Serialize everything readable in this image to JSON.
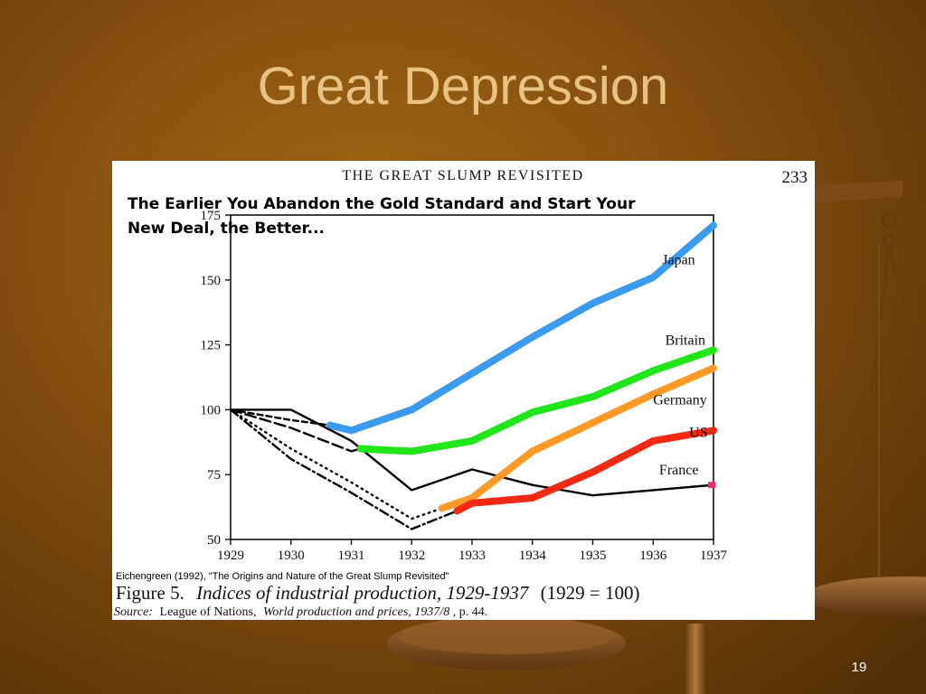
{
  "slide": {
    "title": "Great Depression",
    "number": "19"
  },
  "figure": {
    "header": "THE GREAT SLUMP REVISITED",
    "page_number": "233",
    "overlay_caption_line1": "The Earlier You Abandon the Gold Standard and Start Your",
    "overlay_caption_line2": "New Deal, the Better...",
    "citation": "Eichengreen (1992), \"The Origins and Nature of the Great Slump Revisited\"",
    "figure_label": "Figure 5.",
    "figure_title": "Indices of industrial production, 1929-1937",
    "figure_note": "(1929 = 100)",
    "source_label": "Source:",
    "source_prefix": "League of Nations,",
    "source_italic": "World production and prices, 1937/8",
    "source_suffix": ", p. 44."
  },
  "chart_data": {
    "type": "line",
    "x": [
      1929,
      1930,
      1931,
      1932,
      1933,
      1934,
      1935,
      1936,
      1937
    ],
    "xlim": [
      1929,
      1937
    ],
    "ylim": [
      50,
      175
    ],
    "yticks": [
      50,
      75,
      100,
      125,
      150,
      175
    ],
    "xticks": [
      "1929",
      "1930",
      "1931",
      "1932",
      "1933",
      "1934",
      "1935",
      "1936",
      "1937"
    ],
    "series": [
      {
        "name": "Japan",
        "color": "#3a9bf0",
        "style": "highlight",
        "points": [
          [
            1930.65,
            94
          ],
          [
            1931,
            92
          ],
          [
            1932,
            100
          ],
          [
            1933,
            114
          ],
          [
            1934,
            128
          ],
          [
            1935,
            141
          ],
          [
            1936,
            151
          ],
          [
            1937,
            171
          ]
        ]
      },
      {
        "name": "Britain",
        "color": "#22e61c",
        "style": "highlight",
        "points": [
          [
            1931.15,
            85
          ],
          [
            1931.5,
            84.5
          ],
          [
            1932,
            84
          ],
          [
            1933,
            88
          ],
          [
            1934,
            99
          ],
          [
            1935,
            105
          ],
          [
            1936,
            115
          ],
          [
            1937,
            123
          ]
        ]
      },
      {
        "name": "Germany",
        "color": "#ff9a26",
        "style": "highlight",
        "points": [
          [
            1932.5,
            62
          ],
          [
            1933,
            66
          ],
          [
            1934,
            84
          ],
          [
            1935,
            95
          ],
          [
            1936,
            106
          ],
          [
            1937,
            116
          ]
        ]
      },
      {
        "name": "US",
        "color": "#f22a14",
        "style": "highlight",
        "points": [
          [
            1932.75,
            61
          ],
          [
            1933,
            64
          ],
          [
            1934,
            66
          ],
          [
            1935,
            76
          ],
          [
            1936,
            88
          ],
          [
            1937,
            92
          ]
        ]
      },
      {
        "name": "France",
        "color": "#000000",
        "style": "solid",
        "points": [
          [
            1929,
            100
          ],
          [
            1930,
            100
          ],
          [
            1931,
            88
          ],
          [
            1932,
            69
          ],
          [
            1933,
            77
          ],
          [
            1934,
            71
          ],
          [
            1935,
            67
          ],
          [
            1936,
            69
          ],
          [
            1937,
            71
          ]
        ]
      },
      {
        "name": "",
        "color": "#000000",
        "style": "longdash",
        "points": [
          [
            1929,
            100
          ],
          [
            1930,
            93
          ],
          [
            1931,
            84
          ],
          [
            1931.15,
            85
          ]
        ]
      },
      {
        "name": "",
        "color": "#000000",
        "style": "dotted",
        "points": [
          [
            1929,
            100
          ],
          [
            1930,
            85
          ],
          [
            1931,
            72
          ],
          [
            1932,
            58
          ],
          [
            1932.5,
            62
          ]
        ]
      },
      {
        "name": "",
        "color": "#000000",
        "style": "dashdot",
        "points": [
          [
            1929,
            100
          ],
          [
            1930,
            81
          ],
          [
            1931,
            68
          ],
          [
            1932,
            54
          ],
          [
            1932.75,
            61
          ]
        ]
      },
      {
        "name": "",
        "color": "#000000",
        "style": "shortdash",
        "points": [
          [
            1929,
            100
          ],
          [
            1930,
            96
          ],
          [
            1930.65,
            94
          ]
        ]
      }
    ],
    "markers": [
      {
        "series": "France",
        "color": "#ff2f6e",
        "x": 1937,
        "y": 71
      }
    ],
    "series_labels": [
      {
        "text": "Japan",
        "x": 1936.15,
        "y": 156
      },
      {
        "text": "Britain",
        "x": 1936.2,
        "y": 125
      },
      {
        "text": "Germany",
        "x": 1936.0,
        "y": 102
      },
      {
        "text": "US",
        "x": 1936.6,
        "y": 89.5
      },
      {
        "text": "France",
        "x": 1936.1,
        "y": 75
      }
    ]
  }
}
